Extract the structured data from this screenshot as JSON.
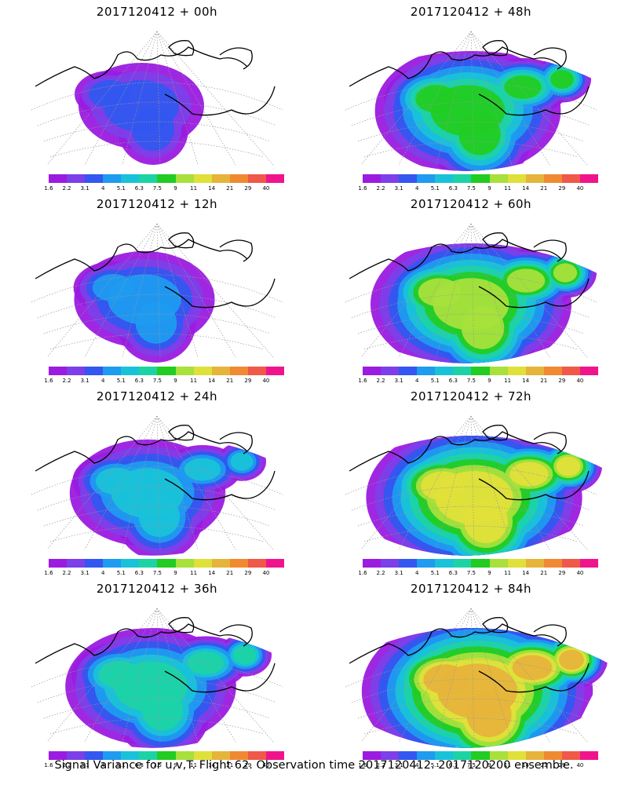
{
  "panels": [
    {
      "title": "2017120412 + 00h",
      "intensity": 0
    },
    {
      "title": "2017120412 + 48h",
      "intensity": 4
    },
    {
      "title": "2017120412 + 12h",
      "intensity": 1
    },
    {
      "title": "2017120412 + 60h",
      "intensity": 5
    },
    {
      "title": "2017120412 + 24h",
      "intensity": 2
    },
    {
      "title": "2017120412 + 72h",
      "intensity": 6
    },
    {
      "title": "2017120412 + 36h",
      "intensity": 3
    },
    {
      "title": "2017120412 + 84h",
      "intensity": 7
    }
  ],
  "colorbar": {
    "colors": [
      "#9b1be0",
      "#7c3fe8",
      "#3357f0",
      "#1f9bf0",
      "#19c2d8",
      "#1cd3a6",
      "#22cc22",
      "#a8e03c",
      "#e0e03a",
      "#e6b43a",
      "#f08a32",
      "#f0584a",
      "#f0148c"
    ],
    "labels": [
      "1.6",
      "2.2",
      "3.1",
      "4",
      "5.1",
      "6.3",
      "7.5",
      "9",
      "11",
      "14",
      "21",
      "29",
      "40"
    ]
  },
  "caption": "Signal Variance for u,v,T. Flight 62. Observation time 2017120412. 2017120200 ensemble."
}
